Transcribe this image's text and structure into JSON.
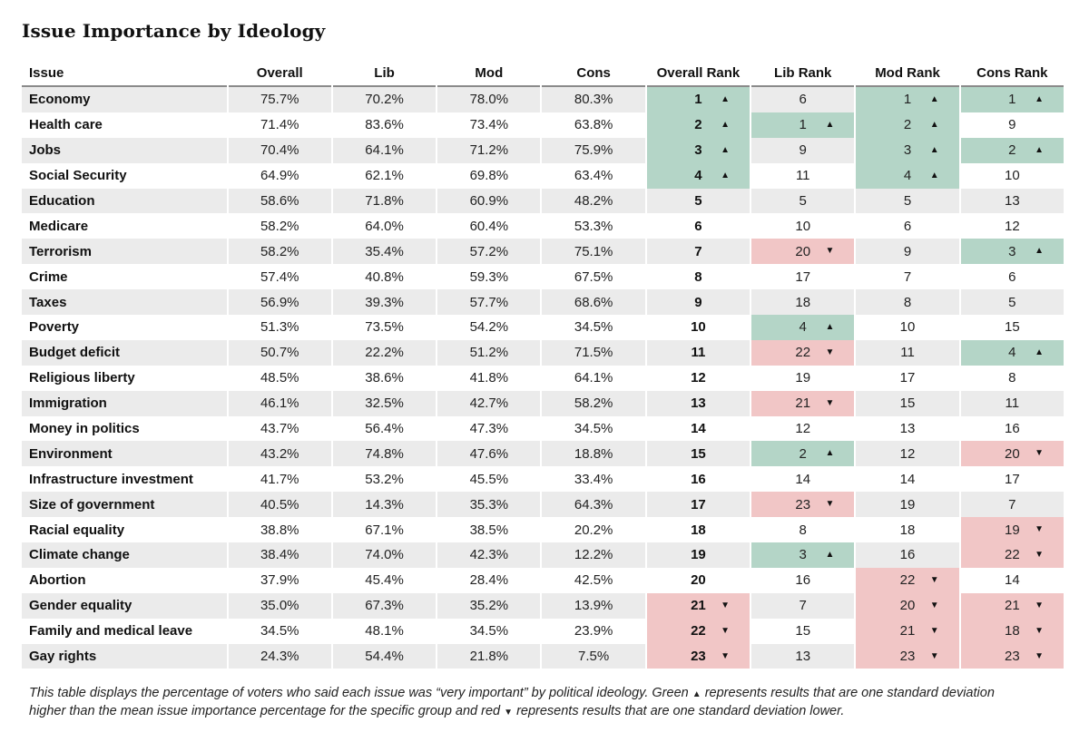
{
  "chart_data": {
    "type": "table",
    "title": "Issue Importance by Ideology",
    "columns": [
      "Issue",
      "Overall",
      "Lib",
      "Mod",
      "Cons",
      "Overall Rank",
      "Lib Rank",
      "Mod Rank",
      "Cons Rank"
    ],
    "colors": {
      "high": "#b4d5c7",
      "low": "#f1c6c6",
      "stripe": "#ebebeb"
    },
    "rows": [
      {
        "issue": "Economy",
        "overall": "75.7%",
        "lib": "70.2%",
        "mod": "78.0%",
        "cons": "80.3%",
        "ranks": [
          {
            "v": "1",
            "f": "up"
          },
          {
            "v": "6",
            "f": ""
          },
          {
            "v": "1",
            "f": "up"
          },
          {
            "v": "1",
            "f": "up"
          }
        ]
      },
      {
        "issue": "Health care",
        "overall": "71.4%",
        "lib": "83.6%",
        "mod": "73.4%",
        "cons": "63.8%",
        "ranks": [
          {
            "v": "2",
            "f": "up"
          },
          {
            "v": "1",
            "f": "up"
          },
          {
            "v": "2",
            "f": "up"
          },
          {
            "v": "9",
            "f": ""
          }
        ]
      },
      {
        "issue": "Jobs",
        "overall": "70.4%",
        "lib": "64.1%",
        "mod": "71.2%",
        "cons": "75.9%",
        "ranks": [
          {
            "v": "3",
            "f": "up"
          },
          {
            "v": "9",
            "f": ""
          },
          {
            "v": "3",
            "f": "up"
          },
          {
            "v": "2",
            "f": "up"
          }
        ]
      },
      {
        "issue": "Social Security",
        "overall": "64.9%",
        "lib": "62.1%",
        "mod": "69.8%",
        "cons": "63.4%",
        "ranks": [
          {
            "v": "4",
            "f": "up"
          },
          {
            "v": "11",
            "f": ""
          },
          {
            "v": "4",
            "f": "up"
          },
          {
            "v": "10",
            "f": ""
          }
        ]
      },
      {
        "issue": "Education",
        "overall": "58.6%",
        "lib": "71.8%",
        "mod": "60.9%",
        "cons": "48.2%",
        "ranks": [
          {
            "v": "5",
            "f": ""
          },
          {
            "v": "5",
            "f": ""
          },
          {
            "v": "5",
            "f": ""
          },
          {
            "v": "13",
            "f": ""
          }
        ]
      },
      {
        "issue": "Medicare",
        "overall": "58.2%",
        "lib": "64.0%",
        "mod": "60.4%",
        "cons": "53.3%",
        "ranks": [
          {
            "v": "6",
            "f": ""
          },
          {
            "v": "10",
            "f": ""
          },
          {
            "v": "6",
            "f": ""
          },
          {
            "v": "12",
            "f": ""
          }
        ]
      },
      {
        "issue": "Terrorism",
        "overall": "58.2%",
        "lib": "35.4%",
        "mod": "57.2%",
        "cons": "75.1%",
        "ranks": [
          {
            "v": "7",
            "f": ""
          },
          {
            "v": "20",
            "f": "down"
          },
          {
            "v": "9",
            "f": ""
          },
          {
            "v": "3",
            "f": "up"
          }
        ]
      },
      {
        "issue": "Crime",
        "overall": "57.4%",
        "lib": "40.8%",
        "mod": "59.3%",
        "cons": "67.5%",
        "ranks": [
          {
            "v": "8",
            "f": ""
          },
          {
            "v": "17",
            "f": ""
          },
          {
            "v": "7",
            "f": ""
          },
          {
            "v": "6",
            "f": ""
          }
        ]
      },
      {
        "issue": "Taxes",
        "overall": "56.9%",
        "lib": "39.3%",
        "mod": "57.7%",
        "cons": "68.6%",
        "ranks": [
          {
            "v": "9",
            "f": ""
          },
          {
            "v": "18",
            "f": ""
          },
          {
            "v": "8",
            "f": ""
          },
          {
            "v": "5",
            "f": ""
          }
        ]
      },
      {
        "issue": "Poverty",
        "overall": "51.3%",
        "lib": "73.5%",
        "mod": "54.2%",
        "cons": "34.5%",
        "ranks": [
          {
            "v": "10",
            "f": ""
          },
          {
            "v": "4",
            "f": "up"
          },
          {
            "v": "10",
            "f": ""
          },
          {
            "v": "15",
            "f": ""
          }
        ]
      },
      {
        "issue": "Budget deficit",
        "overall": "50.7%",
        "lib": "22.2%",
        "mod": "51.2%",
        "cons": "71.5%",
        "ranks": [
          {
            "v": "11",
            "f": ""
          },
          {
            "v": "22",
            "f": "down"
          },
          {
            "v": "11",
            "f": ""
          },
          {
            "v": "4",
            "f": "up"
          }
        ]
      },
      {
        "issue": "Religious liberty",
        "overall": "48.5%",
        "lib": "38.6%",
        "mod": "41.8%",
        "cons": "64.1%",
        "ranks": [
          {
            "v": "12",
            "f": ""
          },
          {
            "v": "19",
            "f": ""
          },
          {
            "v": "17",
            "f": ""
          },
          {
            "v": "8",
            "f": ""
          }
        ]
      },
      {
        "issue": "Immigration",
        "overall": "46.1%",
        "lib": "32.5%",
        "mod": "42.7%",
        "cons": "58.2%",
        "ranks": [
          {
            "v": "13",
            "f": ""
          },
          {
            "v": "21",
            "f": "down"
          },
          {
            "v": "15",
            "f": ""
          },
          {
            "v": "11",
            "f": ""
          }
        ]
      },
      {
        "issue": "Money in politics",
        "overall": "43.7%",
        "lib": "56.4%",
        "mod": "47.3%",
        "cons": "34.5%",
        "ranks": [
          {
            "v": "14",
            "f": ""
          },
          {
            "v": "12",
            "f": ""
          },
          {
            "v": "13",
            "f": ""
          },
          {
            "v": "16",
            "f": ""
          }
        ]
      },
      {
        "issue": "Environment",
        "overall": "43.2%",
        "lib": "74.8%",
        "mod": "47.6%",
        "cons": "18.8%",
        "ranks": [
          {
            "v": "15",
            "f": ""
          },
          {
            "v": "2",
            "f": "up"
          },
          {
            "v": "12",
            "f": ""
          },
          {
            "v": "20",
            "f": "down"
          }
        ]
      },
      {
        "issue": "Infrastructure investment",
        "overall": "41.7%",
        "lib": "53.2%",
        "mod": "45.5%",
        "cons": "33.4%",
        "ranks": [
          {
            "v": "16",
            "f": ""
          },
          {
            "v": "14",
            "f": ""
          },
          {
            "v": "14",
            "f": ""
          },
          {
            "v": "17",
            "f": ""
          }
        ]
      },
      {
        "issue": "Size of government",
        "overall": "40.5%",
        "lib": "14.3%",
        "mod": "35.3%",
        "cons": "64.3%",
        "ranks": [
          {
            "v": "17",
            "f": ""
          },
          {
            "v": "23",
            "f": "down"
          },
          {
            "v": "19",
            "f": ""
          },
          {
            "v": "7",
            "f": ""
          }
        ]
      },
      {
        "issue": "Racial equality",
        "overall": "38.8%",
        "lib": "67.1%",
        "mod": "38.5%",
        "cons": "20.2%",
        "ranks": [
          {
            "v": "18",
            "f": ""
          },
          {
            "v": "8",
            "f": ""
          },
          {
            "v": "18",
            "f": ""
          },
          {
            "v": "19",
            "f": "down"
          }
        ]
      },
      {
        "issue": "Climate change",
        "overall": "38.4%",
        "lib": "74.0%",
        "mod": "42.3%",
        "cons": "12.2%",
        "ranks": [
          {
            "v": "19",
            "f": ""
          },
          {
            "v": "3",
            "f": "up"
          },
          {
            "v": "16",
            "f": ""
          },
          {
            "v": "22",
            "f": "down"
          }
        ]
      },
      {
        "issue": "Abortion",
        "overall": "37.9%",
        "lib": "45.4%",
        "mod": "28.4%",
        "cons": "42.5%",
        "ranks": [
          {
            "v": "20",
            "f": ""
          },
          {
            "v": "16",
            "f": ""
          },
          {
            "v": "22",
            "f": "down"
          },
          {
            "v": "14",
            "f": ""
          }
        ]
      },
      {
        "issue": "Gender equality",
        "overall": "35.0%",
        "lib": "67.3%",
        "mod": "35.2%",
        "cons": "13.9%",
        "ranks": [
          {
            "v": "21",
            "f": "down"
          },
          {
            "v": "7",
            "f": ""
          },
          {
            "v": "20",
            "f": "down"
          },
          {
            "v": "21",
            "f": "down"
          }
        ]
      },
      {
        "issue": "Family and medical leave",
        "overall": "34.5%",
        "lib": "48.1%",
        "mod": "34.5%",
        "cons": "23.9%",
        "ranks": [
          {
            "v": "22",
            "f": "down"
          },
          {
            "v": "15",
            "f": ""
          },
          {
            "v": "21",
            "f": "down"
          },
          {
            "v": "18",
            "f": "down"
          }
        ]
      },
      {
        "issue": "Gay rights",
        "overall": "24.3%",
        "lib": "54.4%",
        "mod": "21.8%",
        "cons": "7.5%",
        "ranks": [
          {
            "v": "23",
            "f": "down"
          },
          {
            "v": "13",
            "f": ""
          },
          {
            "v": "23",
            "f": "down"
          },
          {
            "v": "23",
            "f": "down"
          }
        ]
      }
    ],
    "note": {
      "part1": "This table displays the percentage of voters who said each issue was “very important” by political ideology. Green",
      "part2": "represents results that are one standard deviation higher than the mean issue importance percentage for the specific group and red",
      "part3": "represents results that are one standard deviation lower."
    }
  }
}
